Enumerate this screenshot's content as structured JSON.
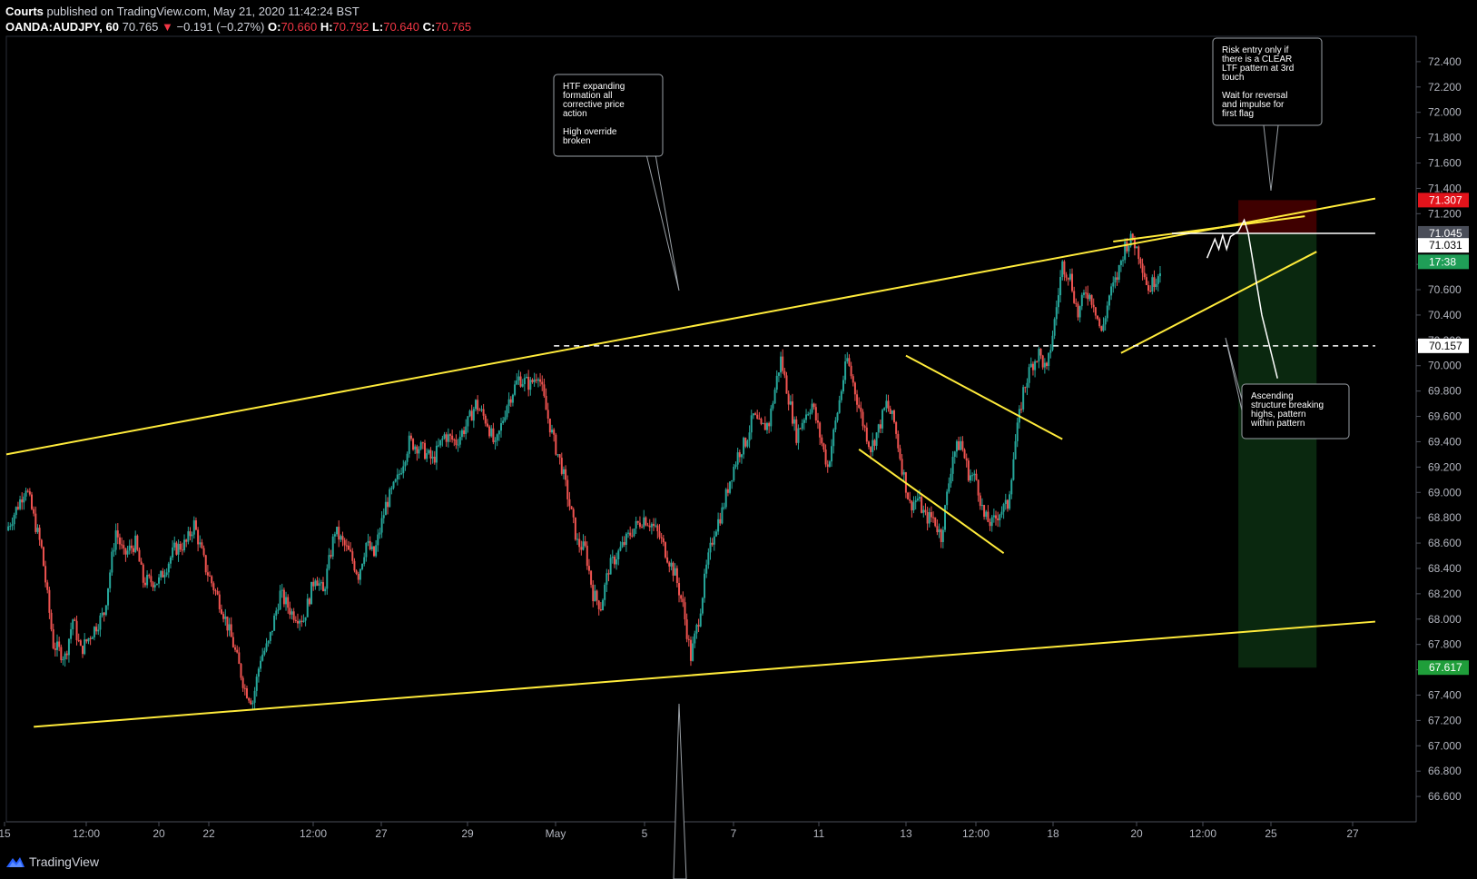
{
  "header": {
    "author": "Courts",
    "published": "published on TradingView.com, May 21, 2020 11:42:24 BST",
    "symbol": "OANDA:AUDJPY, 60",
    "last": "70.765",
    "change_arrow": "▼",
    "change": "−0.191 (−0.27%)",
    "o_label": "O:",
    "o_value": "70.660",
    "h_label": "H:",
    "h_value": "70.792",
    "l_label": "L:",
    "l_value": "70.640",
    "c_label": "C:",
    "c_value": "70.765"
  },
  "footer": {
    "brand": "TradingView",
    "logo_icon": "tradingview-logo-icon"
  },
  "colors": {
    "up": "#26a69a",
    "down": "#ef5350",
    "trendline": "#ffeb3b",
    "annotation": "#ffffff",
    "background": "#000000",
    "stop_zone": "#4a0000",
    "target_zone": "#0b2a10"
  },
  "chart_data": {
    "type": "candlestick",
    "symbol": "OANDA:AUDJPY",
    "interval": "60",
    "ylim": [
      66.4,
      72.6
    ],
    "y_ticks": [
      "72.400",
      "72.200",
      "72.000",
      "71.800",
      "71.600",
      "71.400",
      "71.200",
      "71.000",
      "70.800",
      "70.600",
      "70.400",
      "70.200",
      "70.000",
      "69.800",
      "69.600",
      "69.400",
      "69.200",
      "69.000",
      "68.800",
      "68.600",
      "68.400",
      "68.200",
      "68.000",
      "67.800",
      "67.600",
      "67.400",
      "67.200",
      "67.000",
      "66.800",
      "66.600"
    ],
    "x_ticks": [
      "15",
      "12:00",
      "20",
      "22",
      "12:00",
      "27",
      "29",
      "May",
      "5",
      "7",
      "11",
      "13",
      "12:00",
      "18",
      "20",
      "12:00",
      "25",
      "27"
    ],
    "price_labels": [
      {
        "text": "71.307",
        "role": "stop"
      },
      {
        "text": "71.045",
        "role": "level"
      },
      {
        "text": "71.031",
        "role": "last-close"
      },
      {
        "text": "17:38",
        "role": "countdown"
      },
      {
        "text": "70.157",
        "role": "dashed-level"
      },
      {
        "text": "67.617",
        "role": "target"
      }
    ],
    "path_points": [
      [
        0,
        68.7
      ],
      [
        6,
        68.9
      ],
      [
        10,
        69.05
      ],
      [
        18,
        68.55
      ],
      [
        24,
        67.8
      ],
      [
        30,
        67.7
      ],
      [
        34,
        68.0
      ],
      [
        38,
        67.75
      ],
      [
        44,
        67.9
      ],
      [
        50,
        68.05
      ],
      [
        56,
        68.7
      ],
      [
        60,
        68.5
      ],
      [
        66,
        68.6
      ],
      [
        70,
        68.3
      ],
      [
        78,
        68.3
      ],
      [
        86,
        68.55
      ],
      [
        92,
        68.6
      ],
      [
        96,
        68.75
      ],
      [
        102,
        68.4
      ],
      [
        110,
        68.1
      ],
      [
        116,
        67.8
      ],
      [
        122,
        67.45
      ],
      [
        126,
        67.35
      ],
      [
        130,
        67.7
      ],
      [
        134,
        67.8
      ],
      [
        140,
        68.2
      ],
      [
        146,
        68.05
      ],
      [
        152,
        68.0
      ],
      [
        158,
        68.35
      ],
      [
        162,
        68.2
      ],
      [
        168,
        68.7
      ],
      [
        172,
        68.6
      ],
      [
        176,
        68.5
      ],
      [
        180,
        68.35
      ],
      [
        184,
        68.6
      ],
      [
        188,
        68.5
      ],
      [
        194,
        68.9
      ],
      [
        200,
        69.1
      ],
      [
        206,
        69.4
      ],
      [
        212,
        69.35
      ],
      [
        218,
        69.25
      ],
      [
        224,
        69.45
      ],
      [
        230,
        69.4
      ],
      [
        236,
        69.55
      ],
      [
        240,
        69.7
      ],
      [
        246,
        69.55
      ],
      [
        250,
        69.35
      ],
      [
        256,
        69.7
      ],
      [
        262,
        69.9
      ],
      [
        268,
        69.85
      ],
      [
        272,
        69.95
      ],
      [
        276,
        69.65
      ],
      [
        280,
        69.4
      ],
      [
        284,
        69.2
      ],
      [
        288,
        68.9
      ],
      [
        292,
        68.6
      ],
      [
        296,
        68.55
      ],
      [
        300,
        68.2
      ],
      [
        304,
        68.1
      ],
      [
        308,
        68.4
      ],
      [
        312,
        68.5
      ],
      [
        316,
        68.6
      ],
      [
        320,
        68.7
      ],
      [
        326,
        68.8
      ],
      [
        330,
        68.75
      ],
      [
        334,
        68.65
      ],
      [
        338,
        68.5
      ],
      [
        342,
        68.35
      ],
      [
        346,
        68.1
      ],
      [
        350,
        67.7
      ],
      [
        354,
        68.0
      ],
      [
        358,
        68.4
      ],
      [
        362,
        68.7
      ],
      [
        366,
        68.85
      ],
      [
        370,
        69.1
      ],
      [
        374,
        69.3
      ],
      [
        378,
        69.4
      ],
      [
        382,
        69.6
      ],
      [
        386,
        69.5
      ],
      [
        390,
        69.55
      ],
      [
        394,
        69.9
      ],
      [
        396,
        70.05
      ],
      [
        400,
        69.75
      ],
      [
        404,
        69.45
      ],
      [
        408,
        69.6
      ],
      [
        412,
        69.7
      ],
      [
        416,
        69.45
      ],
      [
        420,
        69.2
      ],
      [
        424,
        69.55
      ],
      [
        428,
        69.9
      ],
      [
        430,
        70.05
      ],
      [
        434,
        69.8
      ],
      [
        438,
        69.55
      ],
      [
        442,
        69.35
      ],
      [
        446,
        69.5
      ],
      [
        450,
        69.7
      ],
      [
        454,
        69.55
      ],
      [
        458,
        69.2
      ],
      [
        462,
        68.9
      ],
      [
        466,
        68.95
      ],
      [
        470,
        68.8
      ],
      [
        474,
        68.8
      ],
      [
        478,
        68.65
      ],
      [
        484,
        69.3
      ],
      [
        488,
        69.4
      ],
      [
        492,
        69.15
      ],
      [
        496,
        69.1
      ],
      [
        500,
        68.8
      ],
      [
        504,
        68.75
      ],
      [
        508,
        68.85
      ],
      [
        512,
        68.9
      ],
      [
        516,
        69.4
      ],
      [
        520,
        69.8
      ],
      [
        524,
        70.0
      ],
      [
        528,
        70.1
      ],
      [
        532,
        69.95
      ],
      [
        536,
        70.35
      ],
      [
        540,
        70.8
      ],
      [
        544,
        70.7
      ],
      [
        548,
        70.4
      ],
      [
        552,
        70.6
      ],
      [
        556,
        70.5
      ],
      [
        560,
        70.25
      ],
      [
        564,
        70.55
      ],
      [
        568,
        70.7
      ],
      [
        572,
        70.95
      ],
      [
        576,
        71.0
      ],
      [
        580,
        70.85
      ],
      [
        584,
        70.6
      ],
      [
        588,
        70.7
      ],
      [
        590,
        70.77
      ]
    ],
    "trendlines": [
      {
        "name": "upper-channel",
        "points": [
          [
            0,
            69.3
          ],
          [
            700,
            71.32
          ]
        ]
      },
      {
        "name": "lower-channel",
        "points": [
          [
            14,
            67.15
          ],
          [
            700,
            67.98
          ]
        ]
      },
      {
        "name": "flag-top",
        "points": [
          [
            460,
            70.08
          ],
          [
            540,
            69.42
          ]
        ]
      },
      {
        "name": "flag-bottom",
        "points": [
          [
            436,
            69.34
          ],
          [
            510,
            68.52
          ]
        ]
      },
      {
        "name": "wedge-top",
        "points": [
          [
            566,
            70.98
          ],
          [
            664,
            71.18
          ]
        ]
      },
      {
        "name": "wedge-bottom",
        "points": [
          [
            570,
            70.1
          ],
          [
            670,
            70.9
          ]
        ]
      },
      {
        "name": "resistance-71045",
        "points": [
          [
            596,
            71.045
          ],
          [
            700,
            71.045
          ]
        ]
      },
      {
        "name": "dashed-70157",
        "points": [
          [
            280,
            70.157
          ],
          [
            700,
            70.157
          ]
        ]
      }
    ],
    "position": {
      "type": "short",
      "entry": 71.045,
      "stop": 71.307,
      "target": 67.617
    },
    "annotations": [
      {
        "name": "htf-note",
        "lines": [
          "HTF expanding",
          "formation all",
          "corrective price",
          "action",
          "",
          "High override",
          "broken"
        ]
      },
      {
        "name": "risk-note",
        "lines": [
          "Risk entry only if",
          "there is a CLEAR",
          "LTF pattern at 3rd",
          "touch",
          "",
          "Wait for reversal",
          "and impulse for",
          "first flag"
        ]
      },
      {
        "name": "ascending-note",
        "lines": [
          "Ascending",
          "structure breaking",
          "highs, pattern",
          "within pattern"
        ]
      }
    ]
  }
}
